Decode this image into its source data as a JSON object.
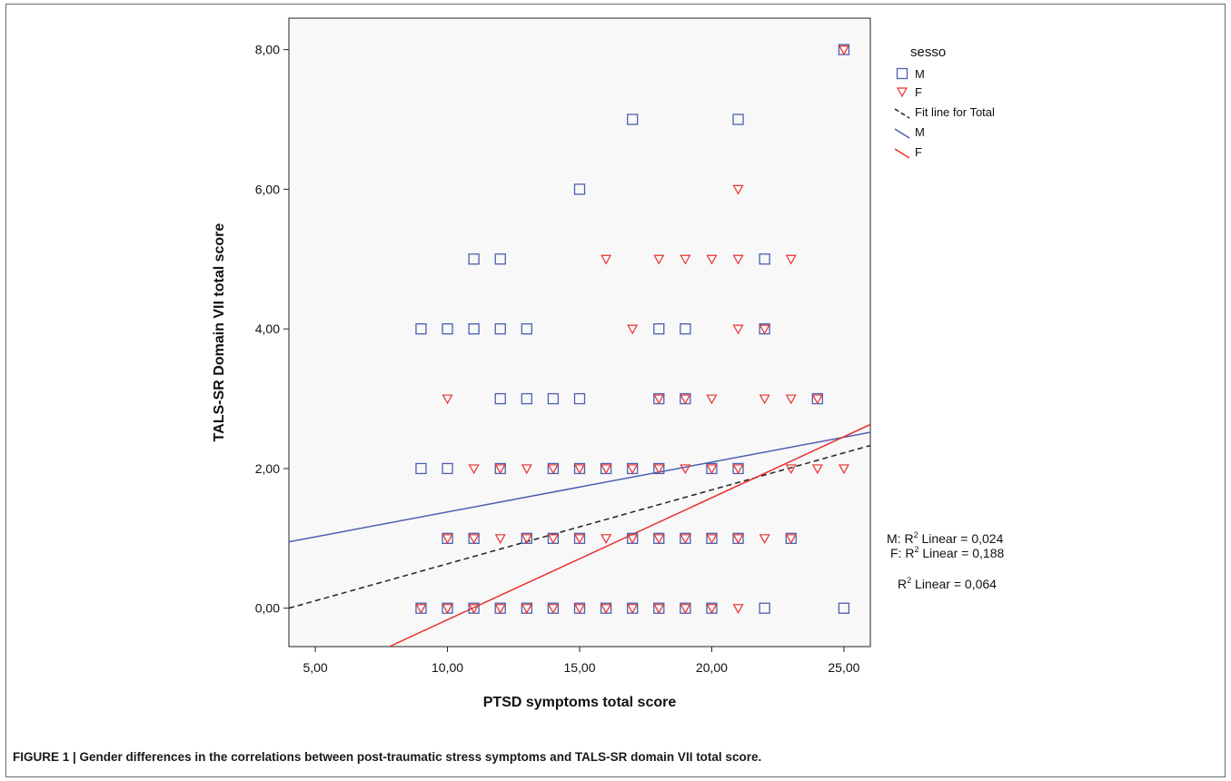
{
  "figure": {
    "caption": "FIGURE 1 | Gender differences in the correlations between post-traumatic stress symptoms and TALS-SR domain VII total score."
  },
  "chart_data": {
    "type": "scatter",
    "title": "",
    "xlabel": "PTSD symptoms total score",
    "ylabel": "TALS-SR Domain VII total score",
    "xlim": [
      4,
      26
    ],
    "ylim": [
      -0.55,
      8.45
    ],
    "xticks": [
      5,
      10,
      15,
      20,
      25
    ],
    "yticks": [
      0,
      2,
      4,
      6,
      8
    ],
    "xtick_labels": [
      "5,00",
      "10,00",
      "15,00",
      "20,00",
      "25,00"
    ],
    "ytick_labels": [
      "0,00",
      "2,00",
      "4,00",
      "6,00",
      "8,00"
    ],
    "grid": false,
    "legend_position": "right",
    "legend": {
      "title": "sesso",
      "entries": [
        "M",
        "F",
        "Fit line for Total",
        "M",
        "F"
      ]
    },
    "colors": {
      "M": "#4a5fb0",
      "F": "#e8302e",
      "total": "#222222",
      "plot_bg": "#f8f8f8"
    },
    "series": [
      {
        "name": "M",
        "marker": "square",
        "points": [
          [
            25,
            8
          ],
          [
            17,
            7
          ],
          [
            21,
            7
          ],
          [
            15,
            6
          ],
          [
            11,
            5
          ],
          [
            12,
            5
          ],
          [
            22,
            5
          ],
          [
            9,
            4
          ],
          [
            10,
            4
          ],
          [
            11,
            4
          ],
          [
            12,
            4
          ],
          [
            13,
            4
          ],
          [
            18,
            4
          ],
          [
            19,
            4
          ],
          [
            22,
            4
          ],
          [
            12,
            3
          ],
          [
            13,
            3
          ],
          [
            14,
            3
          ],
          [
            15,
            3
          ],
          [
            18,
            3
          ],
          [
            19,
            3
          ],
          [
            24,
            3
          ],
          [
            9,
            2
          ],
          [
            10,
            2
          ],
          [
            12,
            2
          ],
          [
            14,
            2
          ],
          [
            15,
            2
          ],
          [
            16,
            2
          ],
          [
            17,
            2
          ],
          [
            18,
            2
          ],
          [
            20,
            2
          ],
          [
            21,
            2
          ],
          [
            10,
            1
          ],
          [
            11,
            1
          ],
          [
            13,
            1
          ],
          [
            14,
            1
          ],
          [
            15,
            1
          ],
          [
            17,
            1
          ],
          [
            18,
            1
          ],
          [
            19,
            1
          ],
          [
            20,
            1
          ],
          [
            21,
            1
          ],
          [
            23,
            1
          ],
          [
            9,
            0
          ],
          [
            10,
            0
          ],
          [
            11,
            0
          ],
          [
            12,
            0
          ],
          [
            13,
            0
          ],
          [
            14,
            0
          ],
          [
            15,
            0
          ],
          [
            16,
            0
          ],
          [
            17,
            0
          ],
          [
            18,
            0
          ],
          [
            19,
            0
          ],
          [
            20,
            0
          ],
          [
            22,
            0
          ],
          [
            25,
            0
          ]
        ]
      },
      {
        "name": "F",
        "marker": "triangle-down",
        "points": [
          [
            25,
            8
          ],
          [
            21,
            6
          ],
          [
            16,
            5
          ],
          [
            18,
            5
          ],
          [
            19,
            5
          ],
          [
            20,
            5
          ],
          [
            21,
            5
          ],
          [
            23,
            5
          ],
          [
            17,
            4
          ],
          [
            21,
            4
          ],
          [
            22,
            4
          ],
          [
            10,
            3
          ],
          [
            18,
            3
          ],
          [
            19,
            3
          ],
          [
            20,
            3
          ],
          [
            22,
            3
          ],
          [
            23,
            3
          ],
          [
            24,
            3
          ],
          [
            11,
            2
          ],
          [
            12,
            2
          ],
          [
            13,
            2
          ],
          [
            14,
            2
          ],
          [
            15,
            2
          ],
          [
            16,
            2
          ],
          [
            17,
            2
          ],
          [
            18,
            2
          ],
          [
            19,
            2
          ],
          [
            20,
            2
          ],
          [
            21,
            2
          ],
          [
            23,
            2
          ],
          [
            24,
            2
          ],
          [
            25,
            2
          ],
          [
            10,
            1
          ],
          [
            11,
            1
          ],
          [
            12,
            1
          ],
          [
            13,
            1
          ],
          [
            14,
            1
          ],
          [
            15,
            1
          ],
          [
            16,
            1
          ],
          [
            17,
            1
          ],
          [
            18,
            1
          ],
          [
            19,
            1
          ],
          [
            20,
            1
          ],
          [
            21,
            1
          ],
          [
            22,
            1
          ],
          [
            23,
            1
          ],
          [
            9,
            0
          ],
          [
            10,
            0
          ],
          [
            11,
            0
          ],
          [
            12,
            0
          ],
          [
            13,
            0
          ],
          [
            14,
            0
          ],
          [
            15,
            0
          ],
          [
            16,
            0
          ],
          [
            17,
            0
          ],
          [
            18,
            0
          ],
          [
            19,
            0
          ],
          [
            20,
            0
          ],
          [
            21,
            0
          ]
        ]
      }
    ],
    "fit_lines": [
      {
        "name": "Fit line for Total",
        "style": "dashed",
        "from": [
          4,
          0
        ],
        "to": [
          26,
          2.33
        ]
      },
      {
        "name": "M",
        "style": "solid",
        "from": [
          4,
          0.95
        ],
        "to": [
          26,
          2.52
        ]
      },
      {
        "name": "F",
        "style": "solid",
        "from": [
          7.8,
          -0.55
        ],
        "to": [
          26,
          2.63
        ]
      }
    ],
    "annotations": [
      {
        "prefix": "M: R",
        "sup": "2",
        "text": " Linear = 0,024"
      },
      {
        "prefix": "F: R",
        "sup": "2",
        "text": " Linear = 0,188"
      },
      {
        "prefix": "R",
        "sup": "2",
        "text": " Linear = 0,064"
      }
    ]
  }
}
